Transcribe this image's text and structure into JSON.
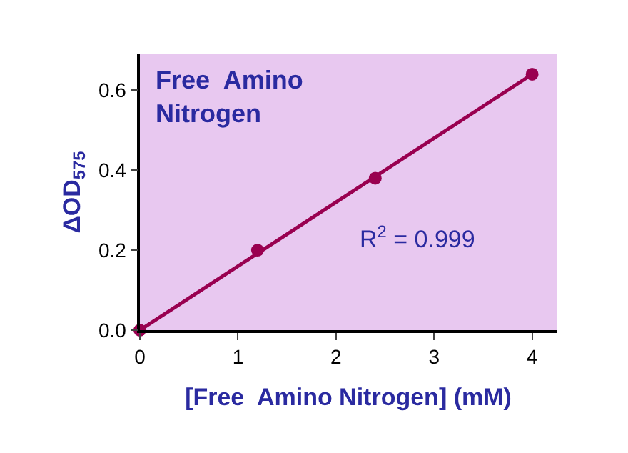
{
  "chart_data": {
    "type": "scatter",
    "title": "Free  Amino\nNitrogen",
    "xlabel": "[Free  Amino Nitrogen] (mM)",
    "ylabel": "ΔOD$_{575}$",
    "series": [
      {
        "color": "#990050",
        "x": [
          0,
          1.2,
          2.4,
          4
        ],
        "values": [
          0,
          0.2,
          0.38,
          0.64
        ],
        "marker": "circle"
      },
      {
        "type": "line",
        "color": "#990050",
        "x": [
          0,
          4
        ],
        "values": [
          0,
          0.64
        ],
        "marker": "none"
      }
    ],
    "annotations": [
      "R$^{2}$ = 0.999"
    ],
    "xlim": [
      0,
      4.25
    ],
    "xticks": [
      0,
      1,
      2,
      3,
      4
    ],
    "ylim": [
      0,
      0.69
    ],
    "yticks": [
      {
        "value": 0,
        "label": "0.0"
      },
      {
        "value": 0.2,
        "label": "0.2"
      },
      {
        "value": 0.4,
        "label": "0.4"
      },
      {
        "value": 0.6,
        "label": "0.6"
      }
    ],
    "grid": false
  }
}
